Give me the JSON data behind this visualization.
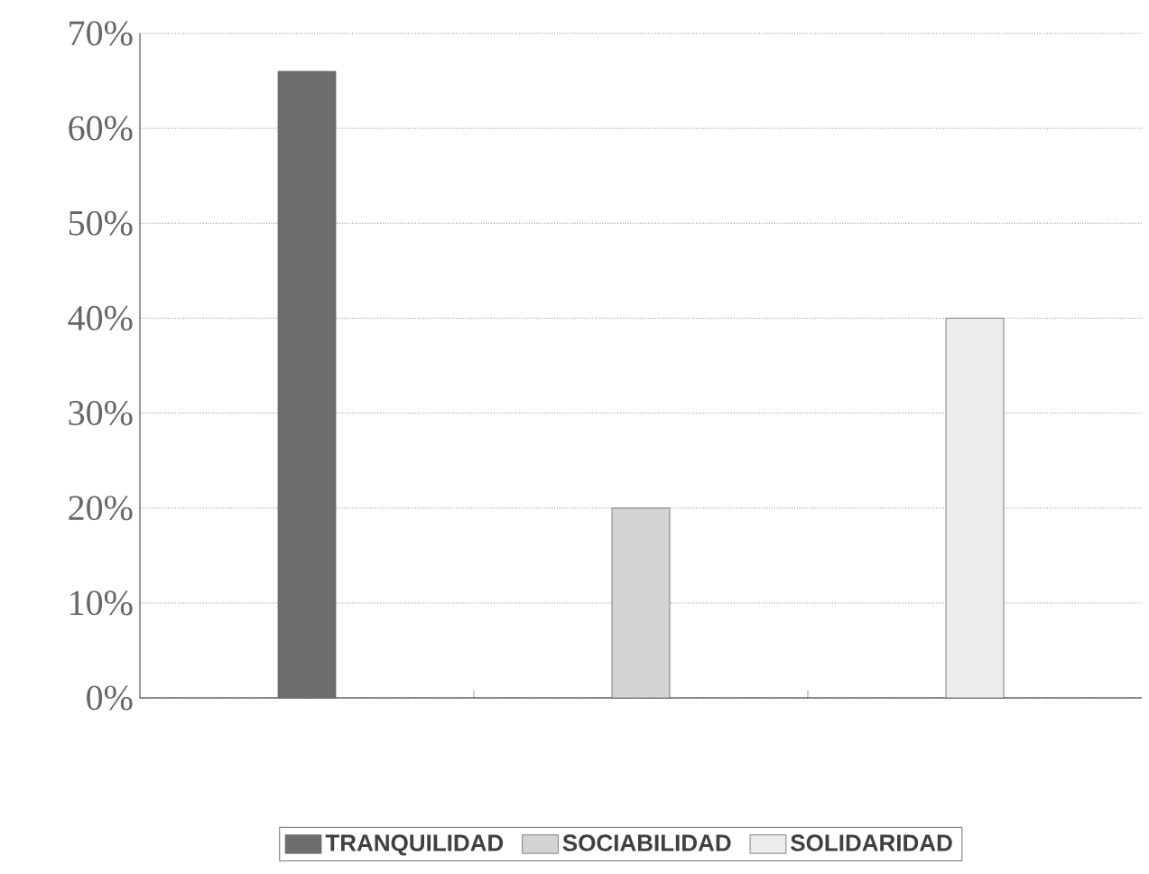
{
  "chart_data": {
    "type": "bar",
    "categories": [
      null,
      null,
      null
    ],
    "series": [
      {
        "name": "TRANQUILIDAD",
        "color": "#6e6e6e",
        "values": [
          66,
          null,
          null
        ]
      },
      {
        "name": "SOCIABILIDAD",
        "color": "#d4d4d4",
        "values": [
          null,
          20,
          null
        ]
      },
      {
        "name": "SOLIDARIDAD",
        "color": "#ececec",
        "values": [
          null,
          null,
          40
        ]
      }
    ],
    "ylim": [
      0,
      70
    ],
    "yticks": [
      {
        "value": 0,
        "label": "0%"
      },
      {
        "value": 10,
        "label": "10%"
      },
      {
        "value": 20,
        "label": "20%"
      },
      {
        "value": 30,
        "label": "30%"
      },
      {
        "value": 40,
        "label": "40%"
      },
      {
        "value": 50,
        "label": "50%"
      },
      {
        "value": 60,
        "label": "60%"
      },
      {
        "value": 70,
        "label": "70%"
      }
    ],
    "grid": "y",
    "legend": "bottom",
    "tick_labels": "y"
  }
}
